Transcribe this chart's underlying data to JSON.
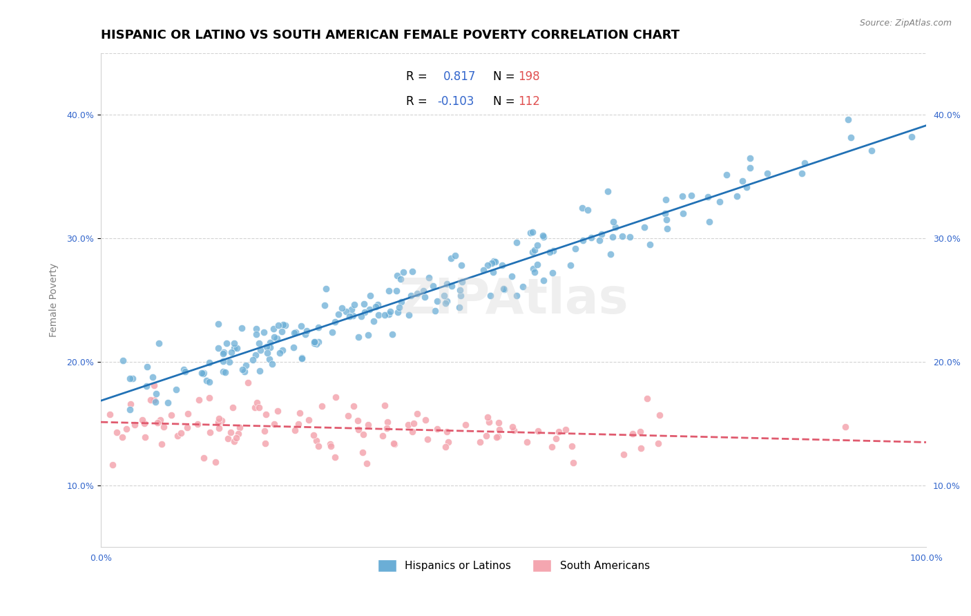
{
  "title": "HISPANIC OR LATINO VS SOUTH AMERICAN FEMALE POVERTY CORRELATION CHART",
  "source": "Source: ZipAtlas.com",
  "xlabel": "",
  "ylabel": "Female Poverty",
  "xlim": [
    0,
    1.0
  ],
  "ylim": [
    0.05,
    0.45
  ],
  "x_ticks": [
    0.0,
    0.1,
    0.2,
    0.3,
    0.4,
    0.5,
    0.6,
    0.7,
    0.8,
    0.9,
    1.0
  ],
  "x_tick_labels": [
    "0.0%",
    "",
    "",
    "",
    "",
    "",
    "",
    "",
    "",
    "",
    "100.0%"
  ],
  "y_ticks": [
    0.1,
    0.2,
    0.3,
    0.4
  ],
  "y_tick_labels": [
    "10.0%",
    "20.0%",
    "30.0%",
    "40.0%"
  ],
  "legend_entries": [
    {
      "label": "R =  0.817   N = 198",
      "color": "#6baed6"
    },
    {
      "label": "R = -0.103   N = 112",
      "color": "#fb9a99"
    }
  ],
  "legend_names": [
    "Hispanics or Latinos",
    "South Americans"
  ],
  "blue_R": 0.817,
  "blue_N": 198,
  "pink_R": -0.103,
  "pink_N": 112,
  "blue_color": "#6baed6",
  "pink_color": "#f4a6b0",
  "blue_line_color": "#2171b5",
  "pink_line_color": "#e05a6e",
  "watermark": "ZIPAtlas",
  "title_fontsize": 13,
  "axis_label_fontsize": 10,
  "tick_fontsize": 9,
  "source_fontsize": 9
}
